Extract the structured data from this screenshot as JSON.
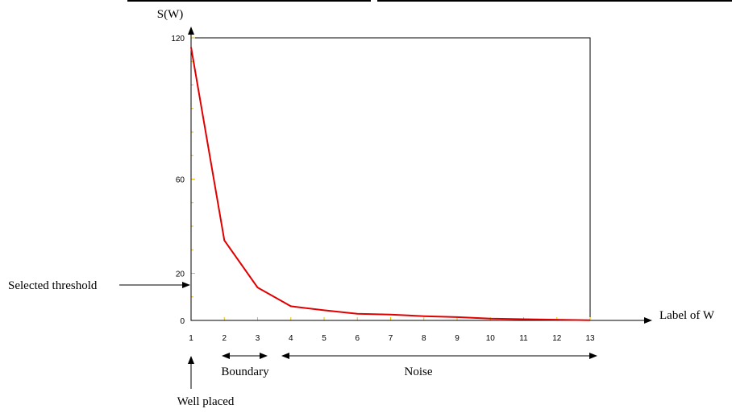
{
  "chart_data": {
    "type": "line",
    "ylabel": "S(W)",
    "xlabel": "Label of W",
    "x": [
      1,
      2,
      3,
      4,
      5,
      6,
      7,
      8,
      9,
      10,
      11,
      12,
      13
    ],
    "series": [
      {
        "values": [
          116,
          34,
          14,
          6,
          4.3,
          2.8,
          2.5,
          1.8,
          1.4,
          0.8,
          0.5,
          0.3,
          0.1
        ]
      }
    ],
    "xlim": [
      1,
      13
    ],
    "ylim": [
      0,
      120
    ],
    "yticks": [
      0,
      20,
      60,
      120
    ],
    "grid": false,
    "line_color": "#e00000",
    "annotations": {
      "threshold": "Selected threshold",
      "well_placed": "Well placed",
      "boundary": "Boundary",
      "noise": "Noise"
    }
  }
}
